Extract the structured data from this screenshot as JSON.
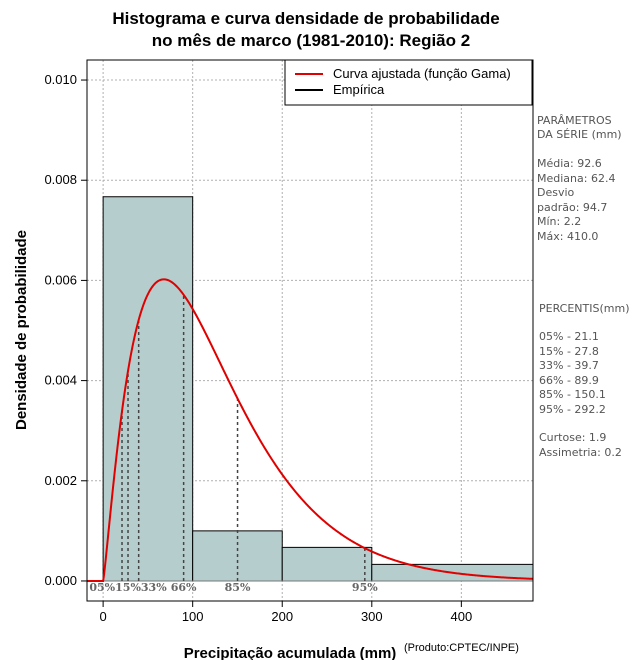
{
  "chart_data": {
    "type": "bar",
    "title_line1": "Histograma e curva densidade de probabilidade",
    "title_line2": "no mês de marco (1981-2010): Região 2",
    "xlabel": "Precipitação acumulada (mm)",
    "ylabel": "Densidade de probabilidade",
    "credit": "(Produto:CPTEC/INPE)",
    "xlim": [
      -18,
      480
    ],
    "ylim": [
      -0.0004,
      0.0104
    ],
    "x_ticks": [
      0,
      100,
      200,
      300,
      400
    ],
    "y_ticks": [
      0.0,
      0.002,
      0.004,
      0.006,
      0.008,
      0.01
    ],
    "y_tick_labels": [
      "0.000",
      "0.002",
      "0.004",
      "0.006",
      "0.008",
      "0.010"
    ],
    "grid": true,
    "bins": [
      {
        "x0": 0,
        "x1": 100,
        "density": 0.00767
      },
      {
        "x0": 100,
        "x1": 200,
        "density": 0.001
      },
      {
        "x0": 200,
        "x1": 300,
        "density": 0.00067
      },
      {
        "x0": 300,
        "x1": 500,
        "density": 0.00033
      }
    ],
    "gamma_fit": {
      "shape": 2.2,
      "scale": 56.5
    },
    "percentile_lines": [
      {
        "label": "05%",
        "x": 21.1
      },
      {
        "label": "15%",
        "x": 27.8
      },
      {
        "label": "33%",
        "x": 39.7
      },
      {
        "label": "66%",
        "x": 89.9
      },
      {
        "label": "85%",
        "x": 150.1
      },
      {
        "label": "95%",
        "x": 292.2
      }
    ],
    "percentile_axis_text": {
      "group_low": "05%15%33%",
      "p66": "66%",
      "p85": "85%",
      "p95": "95%"
    },
    "legend": {
      "position": "top-right",
      "items": [
        {
          "label": "Curva ajustada (função Gama)",
          "color": "#e00000"
        },
        {
          "label": "Empírica",
          "color": "#000000"
        }
      ]
    },
    "colors": {
      "bar_fill": "#b6cdcd",
      "bar_stroke": "#000000",
      "curve": "#e00000",
      "percentile_line": "#444444",
      "grid": "#b0b0b0"
    }
  },
  "side_panel": {
    "params_header_1": "PARÂMETROS",
    "params_header_2": " DA SÉRIE (mm)",
    "media": "Média:  92.6",
    "mediana": "Mediana:  62.4",
    "desvio_1": "Desvio",
    "desvio_2": "padrão:  94.7",
    "min": "Mín:  2.2",
    "max": "Máx:  410.0",
    "percentis_header": " PERCENTIS(mm)",
    "p05": "05% -  21.1",
    "p15": "15% -  27.8",
    "p33": "33% -  39.7",
    "p66": "66% -  89.9",
    "p85": "85% -  150.1",
    "p95": "95% -  292.2",
    "curtose": "Curtose:  1.9",
    "assimetria": "Assimetria:  0.2"
  }
}
